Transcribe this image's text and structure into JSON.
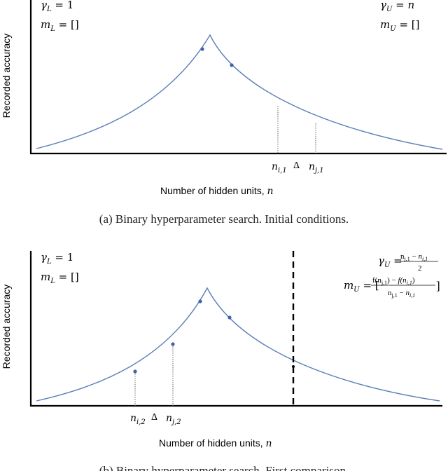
{
  "panel_a": {
    "ylabel": "Recorded accuracy",
    "xlabel": "Number of hidden units, n",
    "gamma_L": "γL = 1",
    "m_L": "mL = []",
    "gamma_U": "γU = n",
    "m_U": "mU = []",
    "x_markers": [
      "ni,1",
      "Δ",
      "nj,1"
    ],
    "caption": "(a) Binary hyperparameter search. Initial conditions."
  },
  "panel_b": {
    "ylabel": "Recorded accuracy",
    "xlabel": "Number of hidden units, n",
    "gamma_L": "γL = 1",
    "m_L": "mL = []",
    "gamma_U": "γU = (nj,1 − ni,1) / 2",
    "m_U": "mU = [ (f(nj,1) − f(ni,1)) / (nj,1 − ni,1) ]",
    "x_markers": [
      "ni,2",
      "Δ",
      "nj,2"
    ],
    "caption": "(b) Binary hyperparameter search. First comparison."
  },
  "colors": {
    "curve": "#5b7fb8",
    "point": "#3f63a8",
    "axis": "#000000",
    "dashed": "#000000"
  }
}
